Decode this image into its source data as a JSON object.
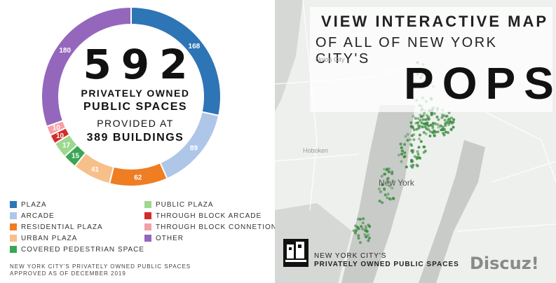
{
  "chart_data": {
    "type": "pie",
    "categories": [
      "Plaza",
      "Arcade",
      "Residential Plaza",
      "Urban Plaza",
      "Covered Pedestrian Space",
      "Public Plaza",
      "Through Block Arcade",
      "Through Block Connetion",
      "Other"
    ],
    "values": [
      168,
      89,
      62,
      41,
      15,
      17,
      10,
      10,
      180
    ],
    "colors": [
      "#2e75b6",
      "#aec6e8",
      "#ef7d22",
      "#f7c08a",
      "#3aa655",
      "#9ed88f",
      "#d42b2b",
      "#f4a0a6",
      "#9467bd"
    ],
    "center": {
      "big_number": "592",
      "line1": "PRIVATELY OWNED",
      "line2": "PUBLIC SPACES",
      "line3": "PROVIDED AT",
      "line4": "389 BUILDINGS"
    },
    "legend": [
      {
        "label": "PLAZA",
        "color": "#2e75b6"
      },
      {
        "label": "ARCADE",
        "color": "#aec6e8"
      },
      {
        "label": "RESIDENTIAL PLAZA",
        "color": "#ef7d22"
      },
      {
        "label": "URBAN PLAZA",
        "color": "#f7c08a"
      },
      {
        "label": "COVERED PEDESTRIAN SPACE",
        "color": "#3aa655"
      },
      {
        "label": "PUBLIC PLAZA",
        "color": "#9ed88f"
      },
      {
        "label": "THROUGH BLOCK ARCADE",
        "color": "#d42b2b"
      },
      {
        "label": "THROUGH BLOCK CONNETION",
        "color": "#f4a0a6"
      },
      {
        "label": "OTHER",
        "color": "#9467bd"
      }
    ],
    "legend_placement": "bottom"
  },
  "footnote": {
    "line1": "NEW YORK CITY'S PRIVATELY OWNED PUBLIC SPACES",
    "line2": "APPROVED AS OF DECEMBER 2019"
  },
  "map_panel": {
    "title_line1": "VIEW INTERACTIVE MAP",
    "title_line2": "OF ALL OF NEW YORK CITY'S",
    "title_pops": "POPS",
    "labels": {
      "new_york": "New York",
      "hoboken": "Hoboken",
      "union_city": "Union City"
    },
    "logo_line1": "NEW YORK CITY'S",
    "logo_line2": "PRIVATELY OWNED PUBLIC SPACES",
    "watermark": "Discuz!",
    "dot_color": "#3d8b40"
  }
}
